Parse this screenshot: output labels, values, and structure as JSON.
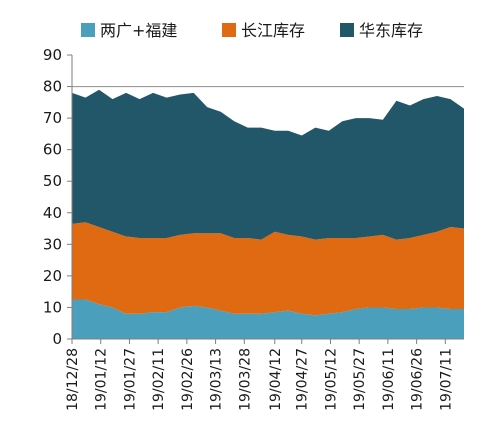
{
  "chart_data": {
    "type": "area",
    "stacked": true,
    "ylim": [
      0,
      90
    ],
    "yticks": [
      0,
      10,
      20,
      30,
      40,
      50,
      60,
      70,
      80,
      90
    ],
    "grid": "horizontal at 80 only",
    "legend_placement": "top",
    "x": [
      "18/12/28",
      "19/01/04",
      "19/01/11",
      "19/01/18",
      "19/01/25",
      "19/02/01",
      "19/02/08",
      "19/02/15",
      "19/02/22",
      "19/03/01",
      "19/03/08",
      "19/03/15",
      "19/03/22",
      "19/03/29",
      "19/04/05",
      "19/04/12",
      "19/04/19",
      "19/04/26",
      "19/05/03",
      "19/05/10",
      "19/05/17",
      "19/05/24",
      "19/05/31",
      "19/06/07",
      "19/06/14",
      "19/06/21",
      "19/06/28",
      "19/07/05",
      "19/07/12",
      "19/07/19"
    ],
    "xtick_labels": [
      "18/12/28",
      "19/01/12",
      "19/01/27",
      "19/02/11",
      "19/02/26",
      "19/03/13",
      "19/03/28",
      "19/04/12",
      "19/04/27",
      "19/05/12",
      "19/05/27",
      "19/06/11",
      "19/06/26",
      "19/07/11"
    ],
    "series": [
      {
        "name": "两广+福建",
        "color": "#4AA0BC",
        "values": [
          12.5,
          12.5,
          11,
          10,
          8,
          8,
          8.5,
          8.5,
          10,
          10.5,
          10,
          9,
          8,
          8,
          8,
          8.5,
          9,
          8,
          7.5,
          8,
          8.5,
          9.5,
          10,
          10,
          9.5,
          9.5,
          10,
          10,
          9.5,
          9.5
        ]
      },
      {
        "name": "长江库存",
        "color": "#E06A12",
        "values": [
          24,
          24.5,
          24.5,
          24,
          24.5,
          24,
          23.5,
          23.5,
          23,
          23,
          23.5,
          24.5,
          24,
          24,
          23.5,
          25.5,
          24,
          24.5,
          24,
          24,
          23.5,
          22.5,
          22.5,
          23,
          22,
          22.5,
          23,
          24,
          26,
          25.5
        ]
      },
      {
        "name": "华东库存",
        "color": "#215769",
        "values": [
          41.5,
          39.5,
          43.5,
          42,
          45.5,
          44,
          46,
          44.5,
          44.5,
          44.5,
          40,
          38.5,
          37,
          35,
          35.5,
          32,
          33,
          32,
          35.5,
          34,
          37,
          38,
          37.5,
          36.5,
          44,
          42,
          43,
          43,
          40.5,
          38
        ]
      }
    ]
  }
}
